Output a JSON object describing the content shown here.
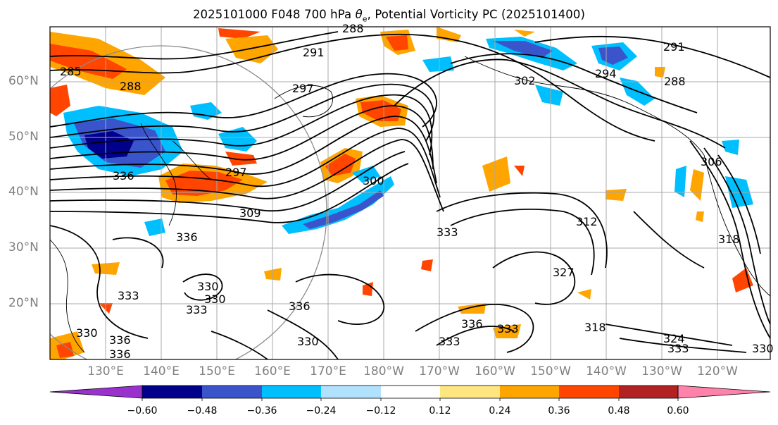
{
  "title": "2025101000 F048 700 hPa θe, Potential Vorticity PC (2025101400)",
  "title_parts": {
    "prefix": "2025101000 F048 700 hPa ",
    "symbol": "θ",
    "subscript": "e",
    "suffix": ", Potential Vorticity PC (2025101400)"
  },
  "map": {
    "lat_labels": [
      "60°N",
      "50°N",
      "40°N",
      "30°N",
      "20°N"
    ],
    "lon_labels": [
      "130°E",
      "140°E",
      "150°E",
      "160°E",
      "170°E",
      "180°W",
      "170°W",
      "160°W",
      "150°W",
      "140°W",
      "130°W",
      "120°W"
    ],
    "contour_labels": [
      "288",
      "291",
      "297",
      "285",
      "288",
      "291",
      "288",
      "302",
      "294",
      "300",
      "297",
      "309",
      "336",
      "336",
      "330",
      "333",
      "333",
      "330",
      "336",
      "336",
      "336",
      "330",
      "333",
      "336",
      "312",
      "327",
      "318",
      "324",
      "333",
      "330",
      "318",
      "306",
      "333",
      "333",
      "330"
    ]
  },
  "colorbar": {
    "levels": [
      "−0.60",
      "−0.48",
      "−0.36",
      "−0.24",
      "−0.12",
      "0.12",
      "0.24",
      "0.36",
      "0.48",
      "0.60"
    ],
    "colors": [
      "#9932cc",
      "#00008b",
      "#3a55cc",
      "#00bfff",
      "#b0e2ff",
      "#ffffff",
      "#ffe680",
      "#ffa500",
      "#ff4500",
      "#b22222",
      "#ff82ab"
    ]
  }
}
